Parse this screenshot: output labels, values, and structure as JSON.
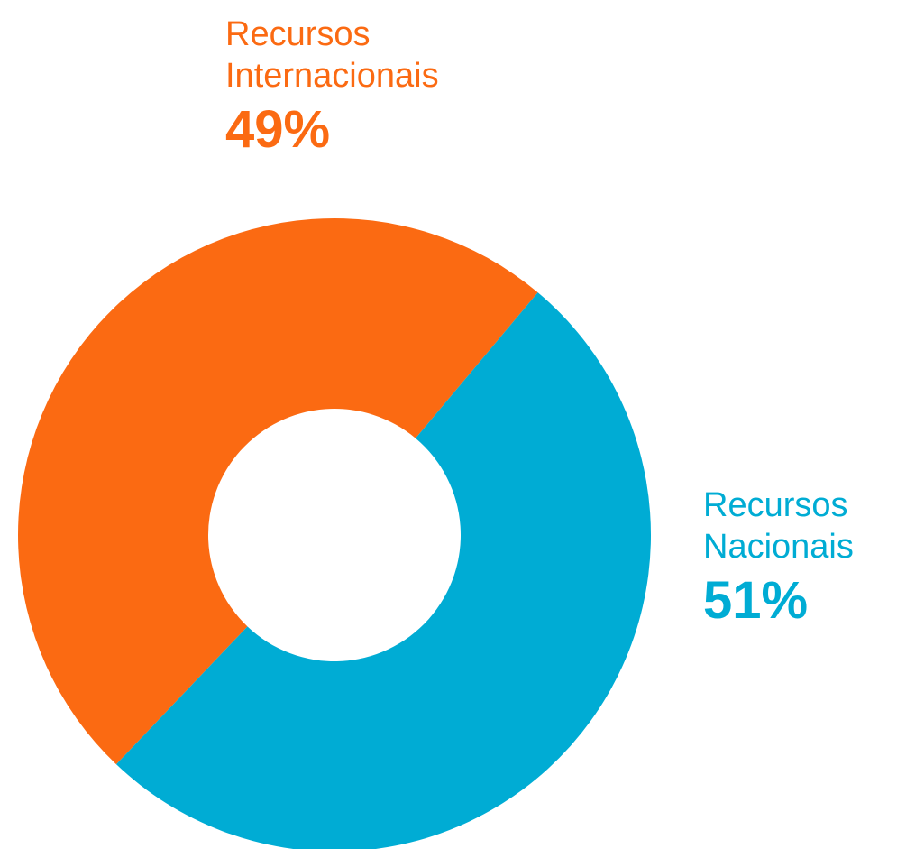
{
  "chart_data": {
    "type": "pie",
    "donut": true,
    "title": "",
    "slices": [
      {
        "key": "internacionais",
        "label": "Recursos\nInternacionais",
        "value": 49,
        "value_label": "49%",
        "color": "#FB6A12"
      },
      {
        "key": "nacionais",
        "label": "Recursos\nNacionais",
        "value": 51,
        "value_label": "51%",
        "color": "#00ACD4"
      }
    ],
    "legend": "none"
  }
}
